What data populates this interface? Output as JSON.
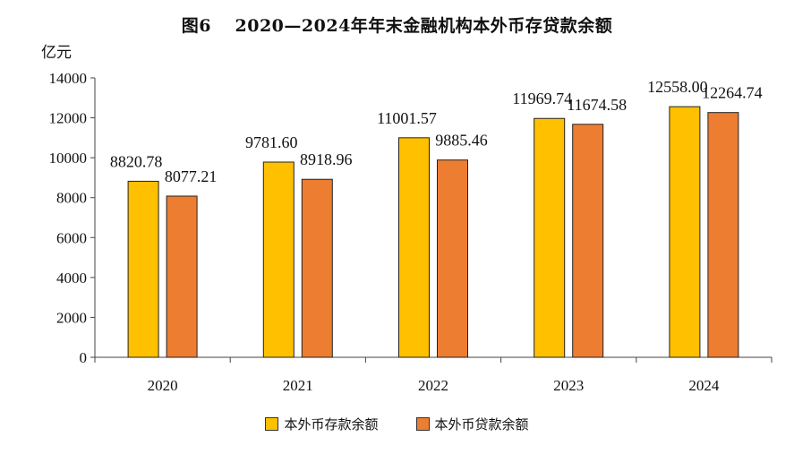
{
  "chart_data": {
    "type": "bar",
    "title": "图6　 2020—2024年年末金融机构本外币存贷款余额",
    "ylabel": "亿元",
    "xlabel": "",
    "categories": [
      "2020",
      "2021",
      "2022",
      "2023",
      "2024"
    ],
    "ylim": [
      0,
      14000
    ],
    "yticks": [
      0,
      2000,
      4000,
      6000,
      8000,
      10000,
      12000,
      14000
    ],
    "grid": false,
    "legend_position": "bottom",
    "series": [
      {
        "name": "本外币存款余额",
        "color": "#FFC000",
        "values": [
          8820.78,
          9781.6,
          11001.57,
          11969.74,
          12558.0
        ],
        "labels": [
          "8820.78",
          "9781.60",
          "11001.57",
          "11969.74",
          "12558.00"
        ]
      },
      {
        "name": "本外币贷款余额",
        "color": "#ED7D31",
        "values": [
          8077.21,
          8918.96,
          9885.46,
          11674.58,
          12264.74
        ],
        "labels": [
          "8077.21",
          "8918.96",
          "9885.46",
          "11674.58",
          "12264.74"
        ]
      }
    ]
  }
}
